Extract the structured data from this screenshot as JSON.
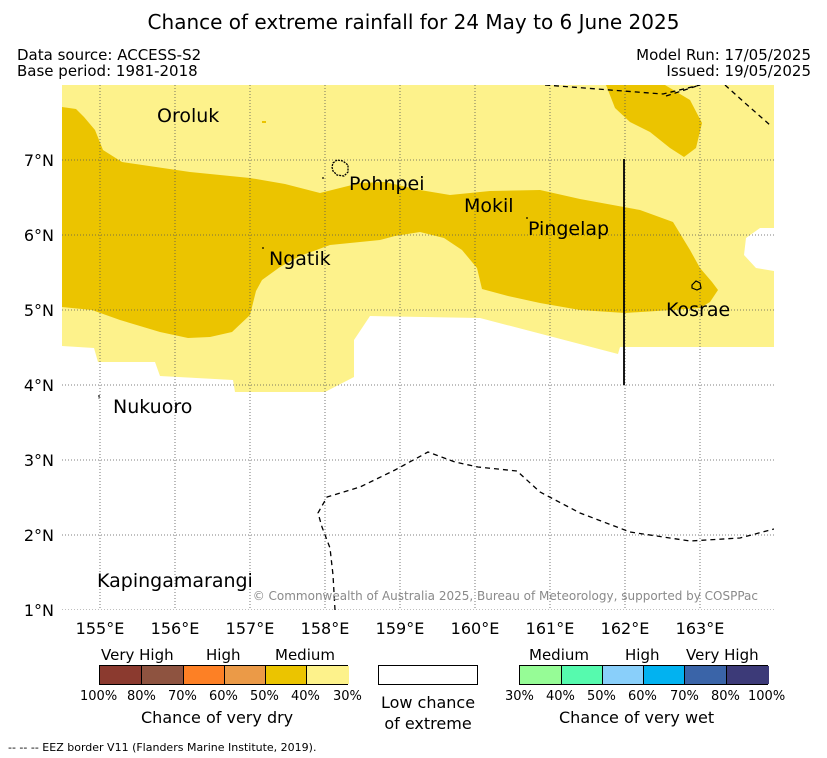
{
  "title": "Chance of extreme rainfall for 24 May to 6 June 2025",
  "data_source": "Data source: ACCESS-S2",
  "base_period": "Base period: 1981-2018",
  "model_run": "Model Run: 17/05/2025",
  "issued": "Issued: 19/05/2025",
  "map": {
    "lon_ticks": [
      "155°E",
      "156°E",
      "157°E",
      "158°E",
      "159°E",
      "160°E",
      "161°E",
      "162°E",
      "163°E"
    ],
    "lat_ticks": [
      "1°N",
      "2°N",
      "3°N",
      "4°N",
      "5°N",
      "6°N",
      "7°N"
    ],
    "places": {
      "oroluk": "Oroluk",
      "pohnpei": "Pohnpei",
      "mokil": "Mokil",
      "pingelap": "Pingelap",
      "ngatik": "Ngatik",
      "kosrae": "Kosrae",
      "nukuoro": "Nukuoro",
      "kapingamarangi": "Kapingamarangi"
    },
    "copyright": "© Commonwealth of Australia 2025, Bureau of Meteorology, supported by COSPPac",
    "colors": {
      "medium_dry": "#ebc400",
      "low_dry": "#fdf28b",
      "land_outline": "#000000"
    }
  },
  "legend": {
    "dry": {
      "levels": [
        "Very High",
        "High",
        "Medium"
      ],
      "colors": [
        "#8b3a2f",
        "#8e5340",
        "#fd8025",
        "#eb9a47",
        "#ebc400",
        "#fdf28b"
      ],
      "percents": [
        "100%",
        "80%",
        "70%",
        "60%",
        "50%",
        "40%",
        "30%"
      ],
      "title": "Chance of very dry"
    },
    "low": {
      "line1": "Low chance",
      "line2": "of extreme"
    },
    "wet": {
      "levels": [
        "Medium",
        "High",
        "Very High"
      ],
      "colors": [
        "#96fc96",
        "#56faae",
        "#89cffa",
        "#02b2f0",
        "#3a64a8",
        "#3c3a78"
      ],
      "percents": [
        "30%",
        "40%",
        "50%",
        "60%",
        "70%",
        "80%",
        "100%"
      ],
      "title": "Chance of very wet"
    }
  },
  "footer": "--  --  -- EEZ border V11 (Flanders Marine Institute, 2019)."
}
